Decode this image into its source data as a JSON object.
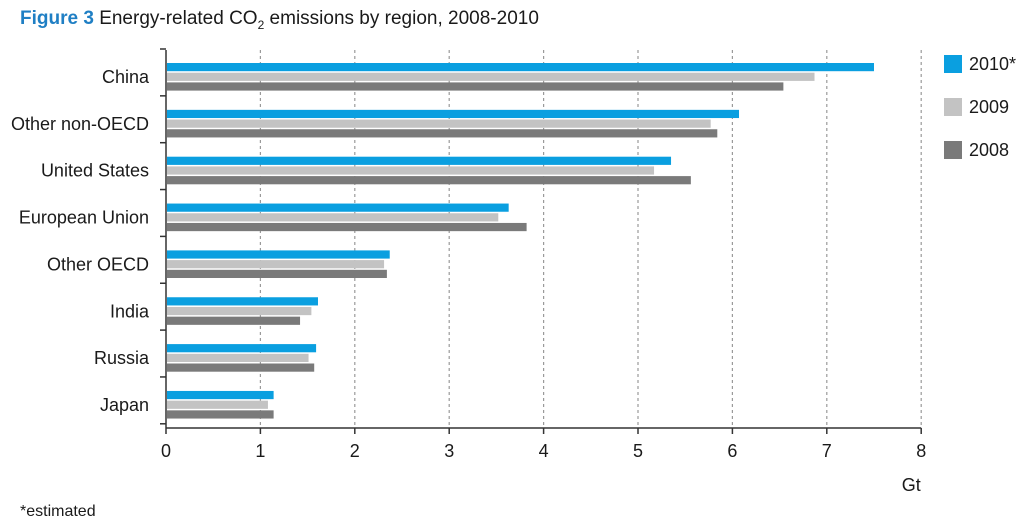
{
  "title": {
    "figure_label": "Figure 3",
    "text_before": "Energy-related CO",
    "subscript": "2",
    "text_after": " emissions by region, 2008-2010"
  },
  "footnote": "*estimated",
  "colors": {
    "2010": "#0a9fe0",
    "2009": "#c3c3c3",
    "2008": "#7a7a7a",
    "grid": "#9a9a9a",
    "axis": "#333333"
  },
  "chart_data": {
    "type": "bar",
    "orientation": "horizontal",
    "title": "Energy-related CO2 emissions by region, 2008-2010",
    "categories": [
      "China",
      "Other non-OECD",
      "United States",
      "European Union",
      "Other OECD",
      "India",
      "Russia",
      "Japan"
    ],
    "series": [
      {
        "name": "2010*",
        "key": "2010",
        "values": [
          7.5,
          6.07,
          5.35,
          3.63,
          2.37,
          1.61,
          1.59,
          1.14
        ]
      },
      {
        "name": "2009",
        "key": "2009",
        "values": [
          6.87,
          5.77,
          5.17,
          3.52,
          2.31,
          1.54,
          1.51,
          1.08
        ]
      },
      {
        "name": "2008",
        "key": "2008",
        "values": [
          6.54,
          5.84,
          5.56,
          3.82,
          2.34,
          1.42,
          1.57,
          1.14
        ]
      }
    ],
    "xlabel": "Gt",
    "ylabel": "",
    "xlim": [
      0,
      8
    ],
    "xticks": [
      "0",
      "1",
      "2",
      "3",
      "4",
      "5",
      "6",
      "7",
      "8"
    ],
    "grid": "vertical dashed",
    "legend_position": "right"
  }
}
